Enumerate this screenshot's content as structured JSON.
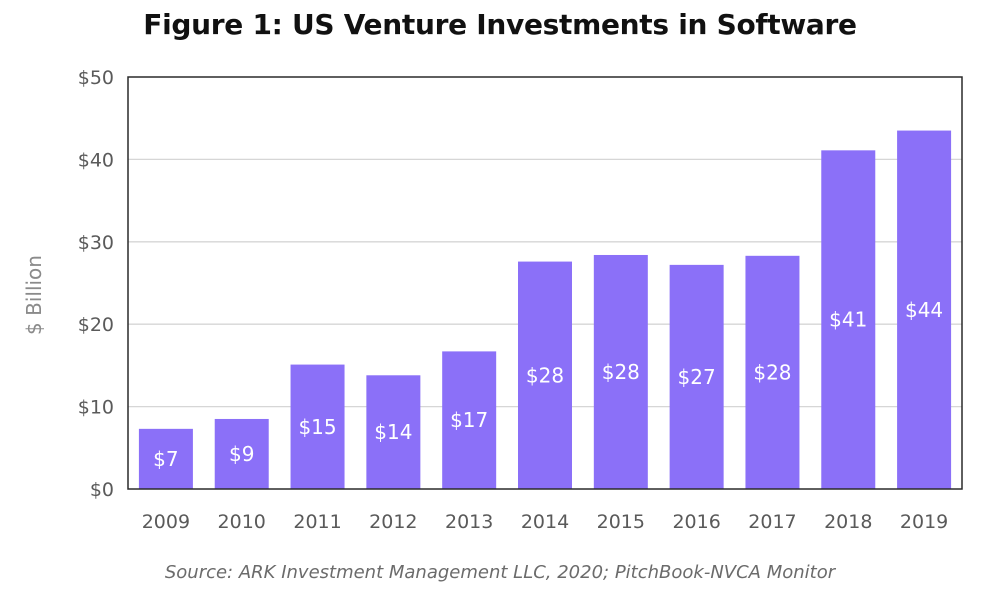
{
  "chart_data": {
    "type": "bar",
    "title": "Figure 1: US Venture Investments in Software",
    "ylabel": "$ Billion",
    "xlabel": "",
    "categories": [
      "2009",
      "2010",
      "2011",
      "2012",
      "2013",
      "2014",
      "2015",
      "2016",
      "2017",
      "2018",
      "2019"
    ],
    "values": [
      7.3,
      8.5,
      15.1,
      13.8,
      16.7,
      27.6,
      28.4,
      27.2,
      28.3,
      41.1,
      43.5
    ],
    "data_labels": [
      "$7",
      "$9",
      "$15",
      "$14",
      "$17",
      "$28",
      "$28",
      "$27",
      "$28",
      "$41",
      "$44"
    ],
    "ylim": [
      0,
      50
    ],
    "yticks": [
      0,
      10,
      20,
      30,
      40,
      50
    ],
    "ytick_labels": [
      "$0",
      "$10",
      "$20",
      "$30",
      "$40",
      "$50"
    ],
    "grid": true,
    "legend": false,
    "source": "Source: ARK Investment Management LLC, 2020; PitchBook-NVCA Monitor",
    "colors": {
      "bar": "#8b70f8",
      "grid": "#d6d6d6",
      "axis_frame": "#2a2a2a",
      "bar_label": "#ffffff"
    }
  }
}
